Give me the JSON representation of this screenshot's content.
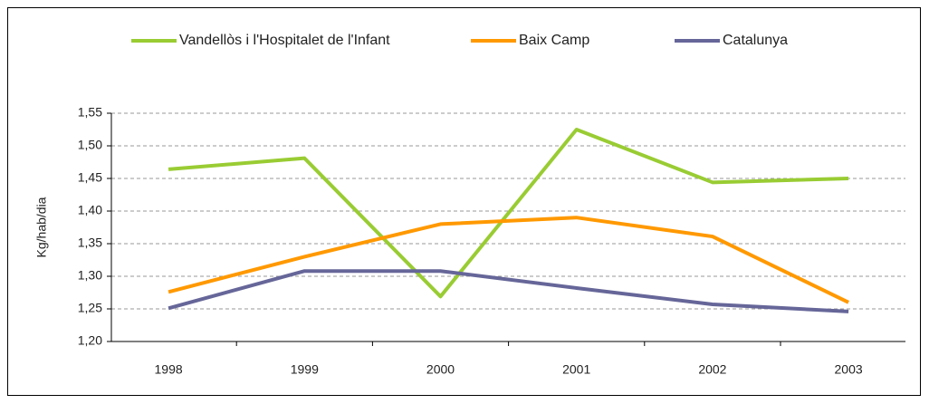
{
  "chart_data": {
    "type": "line",
    "categories": [
      "1998",
      "1999",
      "2000",
      "2001",
      "2002",
      "2003"
    ],
    "y_label": "Kg/hab/dia",
    "series": [
      {
        "name": "Vandellòs i l'Hospitalet de l'Infant",
        "color": "#99cc33",
        "values": [
          1.464,
          1.481,
          1.269,
          1.525,
          1.444,
          1.45
        ]
      },
      {
        "name": "Baix Camp",
        "color": "#ff9900",
        "values": [
          1.276,
          1.33,
          1.38,
          1.39,
          1.361,
          1.26
        ]
      },
      {
        "name": "Catalunya",
        "color": "#666699",
        "values": [
          1.251,
          1.308,
          1.308,
          1.282,
          1.257,
          1.246
        ]
      }
    ],
    "ylim": [
      1.2,
      1.55
    ],
    "yticks": [
      {
        "value": 1.2,
        "label": "1,20"
      },
      {
        "value": 1.25,
        "label": "1,25"
      },
      {
        "value": 1.3,
        "label": "1,30"
      },
      {
        "value": 1.35,
        "label": "1,35"
      },
      {
        "value": 1.4,
        "label": "1,40"
      },
      {
        "value": 1.45,
        "label": "1,45"
      },
      {
        "value": 1.5,
        "label": "1,50"
      },
      {
        "value": 1.55,
        "label": "1,55"
      }
    ],
    "grid": true,
    "legend": "top"
  }
}
